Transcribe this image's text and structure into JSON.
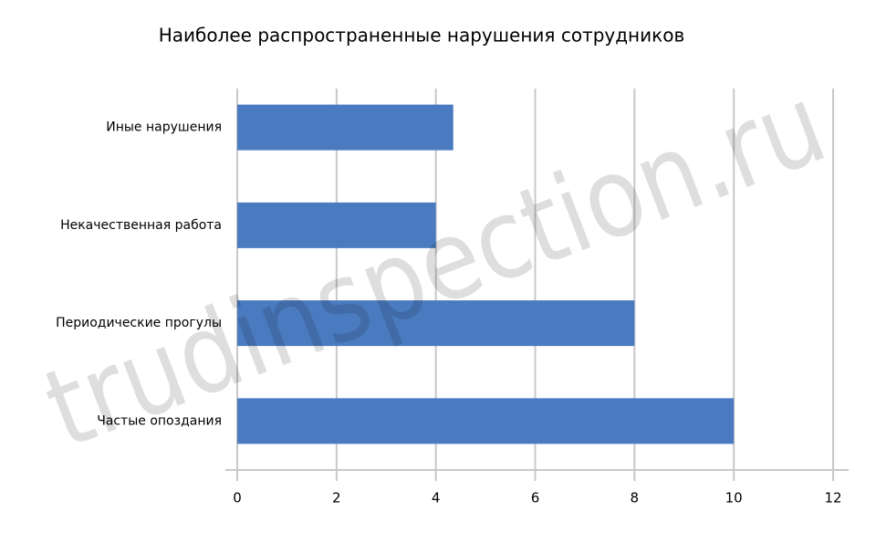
{
  "chart_data": {
    "type": "hbar",
    "title": "Наиболее распространенные нарушения сотрудников",
    "categories": [
      "Иные нарушения",
      "Некачественная работа",
      "Периодические прогулы",
      "Частые опоздания"
    ],
    "values": [
      4.35,
      4,
      8,
      10
    ],
    "color": "#4a7bc0",
    "xlim": [
      0,
      12
    ],
    "xticks": [
      0,
      2,
      4,
      6,
      8,
      10,
      12
    ],
    "grid": true
  },
  "watermark": "trudinspection.ru"
}
